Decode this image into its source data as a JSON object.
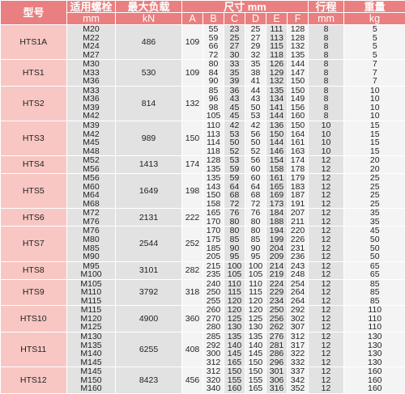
{
  "headers": {
    "model": "型号",
    "bolt": "适用螺栓",
    "max_load": "最大负载",
    "dimensions": "尺寸 mm",
    "stroke": "行程",
    "weight": "重量"
  },
  "units": {
    "bolt": "mm",
    "max_load": "kN",
    "A": "A",
    "B": "B",
    "C": "C",
    "D": "D",
    "E": "E",
    "F": "F",
    "stroke": "mm",
    "weight": "kg"
  },
  "groups": [
    {
      "model": "HTS1A",
      "max_load": "486",
      "A": "109",
      "rows": [
        {
          "bolt": "M20",
          "B": "55",
          "C": "23",
          "D": "25",
          "E": "111",
          "F": "128",
          "stroke": "8",
          "weight": "5"
        },
        {
          "bolt": "M22",
          "B": "59",
          "C": "25",
          "D": "27",
          "E": "113",
          "F": "128",
          "stroke": "8",
          "weight": "5"
        },
        {
          "bolt": "M24",
          "B": "66",
          "C": "27",
          "D": "29",
          "E": "115",
          "F": "132",
          "stroke": "8",
          "weight": "5"
        },
        {
          "bolt": "M27",
          "B": "72",
          "C": "30",
          "D": "32",
          "E": "118",
          "F": "135",
          "stroke": "8",
          "weight": "5"
        }
      ]
    },
    {
      "model": "HTS1",
      "max_load": "530",
      "A": "109",
      "rows": [
        {
          "bolt": "M30",
          "B": "80",
          "C": "33",
          "D": "35",
          "E": "126",
          "F": "144",
          "stroke": "8",
          "weight": "7"
        },
        {
          "bolt": "M33",
          "B": "84",
          "C": "35",
          "D": "38",
          "E": "129",
          "F": "147",
          "stroke": "8",
          "weight": "7"
        },
        {
          "bolt": "M36",
          "B": "90",
          "C": "39",
          "D": "41",
          "E": "132",
          "F": "150",
          "stroke": "8",
          "weight": "7"
        }
      ]
    },
    {
      "model": "HTS2",
      "max_load": "814",
      "A": "132",
      "rows": [
        {
          "bolt": "M33",
          "B": "85",
          "C": "36",
          "D": "44",
          "E": "135",
          "F": "150",
          "stroke": "8",
          "weight": "10"
        },
        {
          "bolt": "M36",
          "B": "96",
          "C": "43",
          "D": "43",
          "E": "134",
          "F": "149",
          "stroke": "8",
          "weight": "10"
        },
        {
          "bolt": "M39",
          "B": "98",
          "C": "45",
          "D": "50",
          "E": "141",
          "F": "156",
          "stroke": "8",
          "weight": "10"
        },
        {
          "bolt": "M42",
          "B": "105",
          "C": "45",
          "D": "53",
          "E": "144",
          "F": "160",
          "stroke": "8",
          "weight": "10"
        }
      ]
    },
    {
      "model": "HTS3",
      "max_load": "989",
      "A": "150",
      "rows": [
        {
          "bolt": "M39",
          "B": "110",
          "C": "42",
          "D": "42",
          "E": "136",
          "F": "150",
          "stroke": "10",
          "weight": "15"
        },
        {
          "bolt": "M42",
          "B": "113",
          "C": "53",
          "D": "56",
          "E": "150",
          "F": "164",
          "stroke": "10",
          "weight": "15"
        },
        {
          "bolt": "M45",
          "B": "114",
          "C": "50",
          "D": "50",
          "E": "144",
          "F": "161",
          "stroke": "10",
          "weight": "15"
        },
        {
          "bolt": "M48",
          "B": "118",
          "C": "52",
          "D": "52",
          "E": "146",
          "F": "163",
          "stroke": "10",
          "weight": "15"
        }
      ]
    },
    {
      "model": "HTS4",
      "max_load": "1413",
      "A": "174",
      "rows": [
        {
          "bolt": "M52",
          "B": "128",
          "C": "53",
          "D": "56",
          "E": "154",
          "F": "174",
          "stroke": "12",
          "weight": "20"
        },
        {
          "bolt": "M56",
          "B": "135",
          "C": "59",
          "D": "60",
          "E": "158",
          "F": "178",
          "stroke": "12",
          "weight": "20"
        }
      ]
    },
    {
      "model": "HTS5",
      "max_load": "1649",
      "A": "198",
      "rows": [
        {
          "bolt": "M56",
          "B": "135",
          "C": "59",
          "D": "60",
          "E": "161",
          "F": "179",
          "stroke": "12",
          "weight": "25"
        },
        {
          "bolt": "M60",
          "B": "143",
          "C": "64",
          "D": "64",
          "E": "165",
          "F": "183",
          "stroke": "12",
          "weight": "25"
        },
        {
          "bolt": "M64",
          "B": "150",
          "C": "68",
          "D": "68",
          "E": "169",
          "F": "187",
          "stroke": "12",
          "weight": "25"
        },
        {
          "bolt": "M68",
          "B": "158",
          "C": "72",
          "D": "72",
          "E": "173",
          "F": "191",
          "stroke": "12",
          "weight": "25"
        }
      ]
    },
    {
      "model": "HTS6",
      "max_load": "2131",
      "A": "222",
      "rows": [
        {
          "bolt": "M72",
          "B": "165",
          "C": "76",
          "D": "76",
          "E": "184",
          "F": "207",
          "stroke": "12",
          "weight": "35"
        },
        {
          "bolt": "M76",
          "B": "170",
          "C": "80",
          "D": "80",
          "E": "188",
          "F": "211",
          "stroke": "12",
          "weight": "35"
        }
      ]
    },
    {
      "model": "HTS7",
      "max_load": "2544",
      "A": "252",
      "rows": [
        {
          "bolt": "M76",
          "B": "170",
          "C": "80",
          "D": "80",
          "E": "194",
          "F": "220",
          "stroke": "12",
          "weight": "45"
        },
        {
          "bolt": "M80",
          "B": "175",
          "C": "85",
          "D": "85",
          "E": "199",
          "F": "226",
          "stroke": "12",
          "weight": "50"
        },
        {
          "bolt": "M85",
          "B": "185",
          "C": "90",
          "D": "90",
          "E": "204",
          "F": "231",
          "stroke": "12",
          "weight": "50"
        },
        {
          "bolt": "M90",
          "B": "205",
          "C": "95",
          "D": "95",
          "E": "209",
          "F": "236",
          "stroke": "12",
          "weight": "50"
        }
      ]
    },
    {
      "model": "HTS8",
      "max_load": "3101",
      "A": "282",
      "rows": [
        {
          "bolt": "M95",
          "B": "215",
          "C": "100",
          "D": "100",
          "E": "214",
          "F": "243",
          "stroke": "12",
          "weight": "65"
        },
        {
          "bolt": "M100",
          "B": "235",
          "C": "105",
          "D": "105",
          "E": "219",
          "F": "248",
          "stroke": "12",
          "weight": "65"
        }
      ]
    },
    {
      "model": "HTS9",
      "max_load": "3792",
      "A": "318",
      "rows": [
        {
          "bolt": "M105",
          "B": "240",
          "C": "110",
          "D": "110",
          "E": "224",
          "F": "254",
          "stroke": "12",
          "weight": "85"
        },
        {
          "bolt": "M110",
          "B": "250",
          "C": "115",
          "D": "115",
          "E": "229",
          "F": "264",
          "stroke": "12",
          "weight": "85"
        },
        {
          "bolt": "M115",
          "B": "255",
          "C": "120",
          "D": "120",
          "E": "234",
          "F": "264",
          "stroke": "12",
          "weight": "85"
        }
      ]
    },
    {
      "model": "HTS10",
      "max_load": "4900",
      "A": "360",
      "rows": [
        {
          "bolt": "M115",
          "B": "260",
          "C": "120",
          "D": "120",
          "E": "250",
          "F": "292",
          "stroke": "12",
          "weight": "110"
        },
        {
          "bolt": "M120",
          "B": "270",
          "C": "125",
          "D": "125",
          "E": "256",
          "F": "302",
          "stroke": "12",
          "weight": "110"
        },
        {
          "bolt": "M125",
          "B": "280",
          "C": "130",
          "D": "130",
          "E": "262",
          "F": "307",
          "stroke": "12",
          "weight": "110"
        }
      ]
    },
    {
      "model": "HTS11",
      "max_load": "6255",
      "A": "408",
      "rows": [
        {
          "bolt": "M130",
          "B": "285",
          "C": "135",
          "D": "135",
          "E": "276",
          "F": "312",
          "stroke": "12",
          "weight": "130"
        },
        {
          "bolt": "M135",
          "B": "292",
          "C": "140",
          "D": "140",
          "E": "281",
          "F": "317",
          "stroke": "12",
          "weight": "130"
        },
        {
          "bolt": "M140",
          "B": "300",
          "C": "145",
          "D": "145",
          "E": "286",
          "F": "322",
          "stroke": "12",
          "weight": "130"
        },
        {
          "bolt": "M145",
          "B": "312",
          "C": "165",
          "D": "150",
          "E": "296",
          "F": "332",
          "stroke": "12",
          "weight": "130"
        }
      ]
    },
    {
      "model": "HTS12",
      "max_load": "8423",
      "A": "456",
      "rows": [
        {
          "bolt": "M145",
          "B": "312",
          "C": "150",
          "D": "150",
          "E": "301",
          "F": "337",
          "stroke": "12",
          "weight": "160"
        },
        {
          "bolt": "M150",
          "B": "320",
          "C": "155",
          "D": "155",
          "E": "306",
          "F": "342",
          "stroke": "12",
          "weight": "160"
        },
        {
          "bolt": "M160",
          "B": "340",
          "C": "160",
          "D": "165",
          "E": "316",
          "F": "352",
          "stroke": "12",
          "weight": "160"
        }
      ]
    }
  ]
}
